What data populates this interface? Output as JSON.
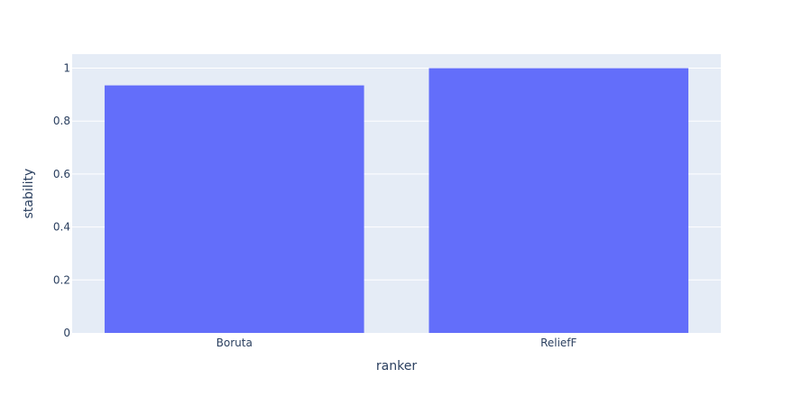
{
  "chart_data": {
    "type": "bar",
    "categories": [
      "Boruta",
      "ReliefF"
    ],
    "values": [
      0.935,
      1.0
    ],
    "xlabel": "ranker",
    "ylabel": "stability",
    "ylim": [
      0,
      1.053
    ],
    "yticks": [
      0,
      0.2,
      0.4,
      0.6,
      0.8,
      1
    ],
    "ytick_labels": [
      "0",
      "0.2",
      "0.4",
      "0.6",
      "0.8",
      "1"
    ],
    "grid": true,
    "colors": {
      "bar": "#636efa",
      "plot_bg": "#e5ecf6",
      "grid": "#ffffff",
      "text": "#2a3f5f"
    }
  }
}
